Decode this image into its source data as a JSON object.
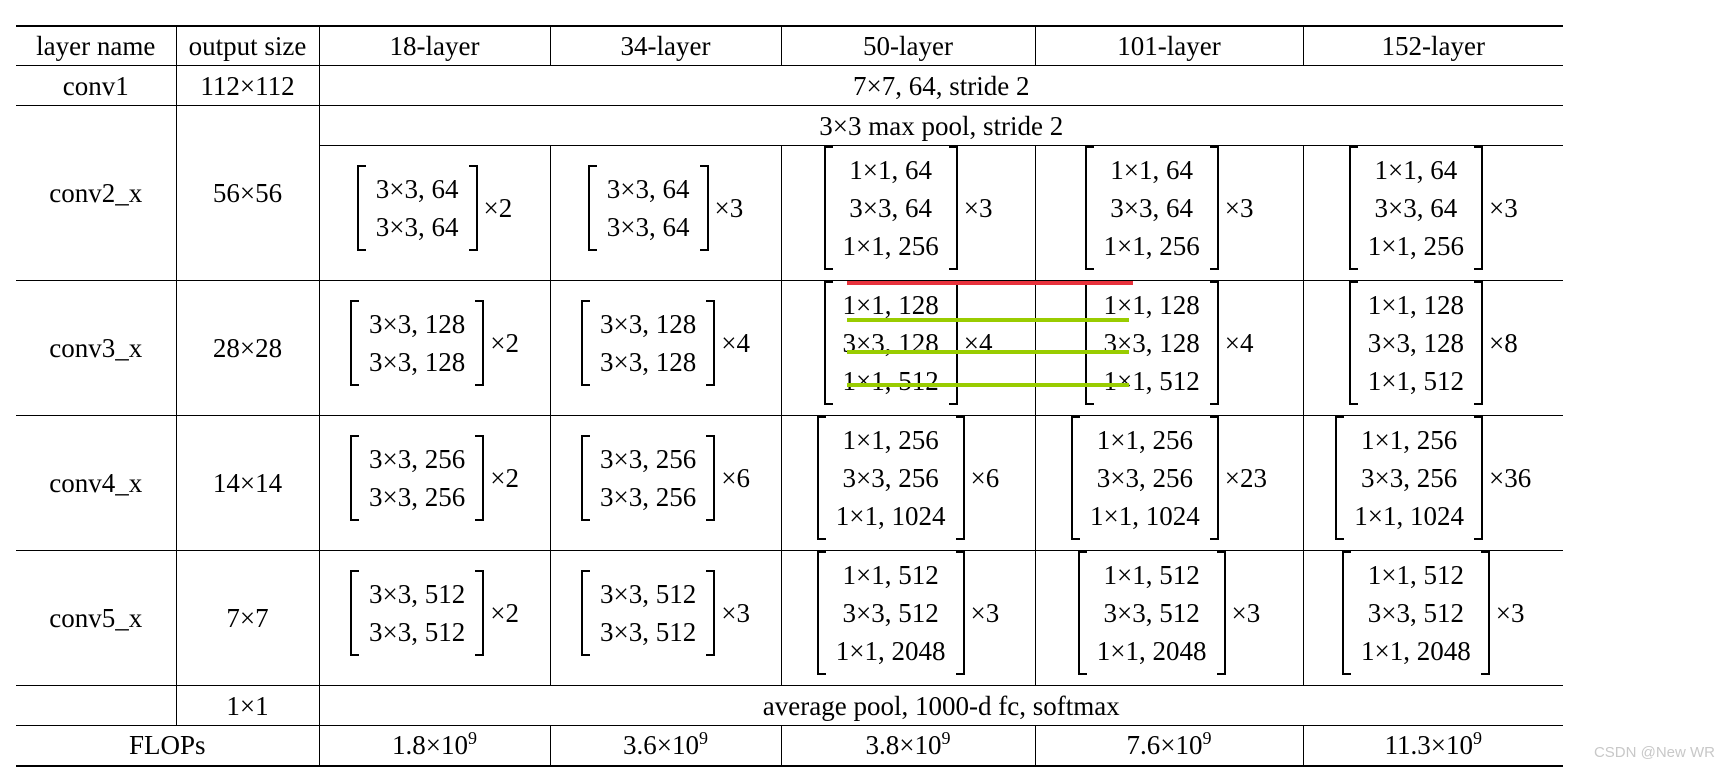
{
  "columns": [
    "layer name",
    "output size",
    "18-layer",
    "34-layer",
    "50-layer",
    "101-layer",
    "152-layer"
  ],
  "conv1": {
    "name": "conv1",
    "output": "112×112",
    "spec": "7×7, 64, stride 2"
  },
  "conv2_pool": "3×3 max pool, stride 2",
  "stages": [
    {
      "name": "conv2_x",
      "output": "56×56",
      "blocks": [
        {
          "rows": [
            "3×3, 64",
            "3×3, 64"
          ],
          "mult": "×2"
        },
        {
          "rows": [
            "3×3, 64",
            "3×3, 64"
          ],
          "mult": "×3"
        },
        {
          "rows": [
            "1×1, 64",
            "3×3, 64",
            "1×1, 256"
          ],
          "mult": "×3"
        },
        {
          "rows": [
            "1×1, 64",
            "3×3, 64",
            "1×1, 256"
          ],
          "mult": "×3"
        },
        {
          "rows": [
            "1×1, 64",
            "3×3, 64",
            "1×1, 256"
          ],
          "mult": "×3"
        }
      ]
    },
    {
      "name": "conv3_x",
      "output": "28×28",
      "blocks": [
        {
          "rows": [
            "3×3, 128",
            "3×3, 128"
          ],
          "mult": "×2"
        },
        {
          "rows": [
            "3×3, 128",
            "3×3, 128"
          ],
          "mult": "×4"
        },
        {
          "rows": [
            "1×1, 128",
            "3×3, 128",
            "1×1, 512"
          ],
          "mult": "×4"
        },
        {
          "rows": [
            "1×1, 128",
            "3×3, 128",
            "1×1, 512"
          ],
          "mult": "×4"
        },
        {
          "rows": [
            "1×1, 128",
            "3×3, 128",
            "1×1, 512"
          ],
          "mult": "×8"
        }
      ]
    },
    {
      "name": "conv4_x",
      "output": "14×14",
      "blocks": [
        {
          "rows": [
            "3×3, 256",
            "3×3, 256"
          ],
          "mult": "×2"
        },
        {
          "rows": [
            "3×3, 256",
            "3×3, 256"
          ],
          "mult": "×6"
        },
        {
          "rows": [
            "1×1, 256",
            "3×3, 256",
            "1×1, 1024"
          ],
          "mult": "×6"
        },
        {
          "rows": [
            "1×1, 256",
            "3×3, 256",
            "1×1, 1024"
          ],
          "mult": "×23"
        },
        {
          "rows": [
            "1×1, 256",
            "3×3, 256",
            "1×1, 1024"
          ],
          "mult": "×36"
        }
      ]
    },
    {
      "name": "conv5_x",
      "output": "7×7",
      "blocks": [
        {
          "rows": [
            "3×3, 512",
            "3×3, 512"
          ],
          "mult": "×2"
        },
        {
          "rows": [
            "3×3, 512",
            "3×3, 512"
          ],
          "mult": "×3"
        },
        {
          "rows": [
            "1×1, 512",
            "3×3, 512",
            "1×1, 2048"
          ],
          "mult": "×3"
        },
        {
          "rows": [
            "1×1, 512",
            "3×3, 512",
            "1×1, 2048"
          ],
          "mult": "×3"
        },
        {
          "rows": [
            "1×1, 512",
            "3×3, 512",
            "1×1, 2048"
          ],
          "mult": "×3"
        }
      ]
    }
  ],
  "final": {
    "output": "1×1",
    "spec": "average pool, 1000-d fc, softmax"
  },
  "flops": {
    "label": "FLOPs",
    "values": [
      {
        "base": "1.8×10",
        "exp": "9"
      },
      {
        "base": "3.6×10",
        "exp": "9"
      },
      {
        "base": "3.8×10",
        "exp": "9"
      },
      {
        "base": "7.6×10",
        "exp": "9"
      },
      {
        "base": "11.3×10",
        "exp": "9"
      }
    ]
  },
  "annotation_colors": {
    "red_line": "#e8323c",
    "green_line": "#99cc00"
  },
  "watermark": "CSDN @New WR"
}
